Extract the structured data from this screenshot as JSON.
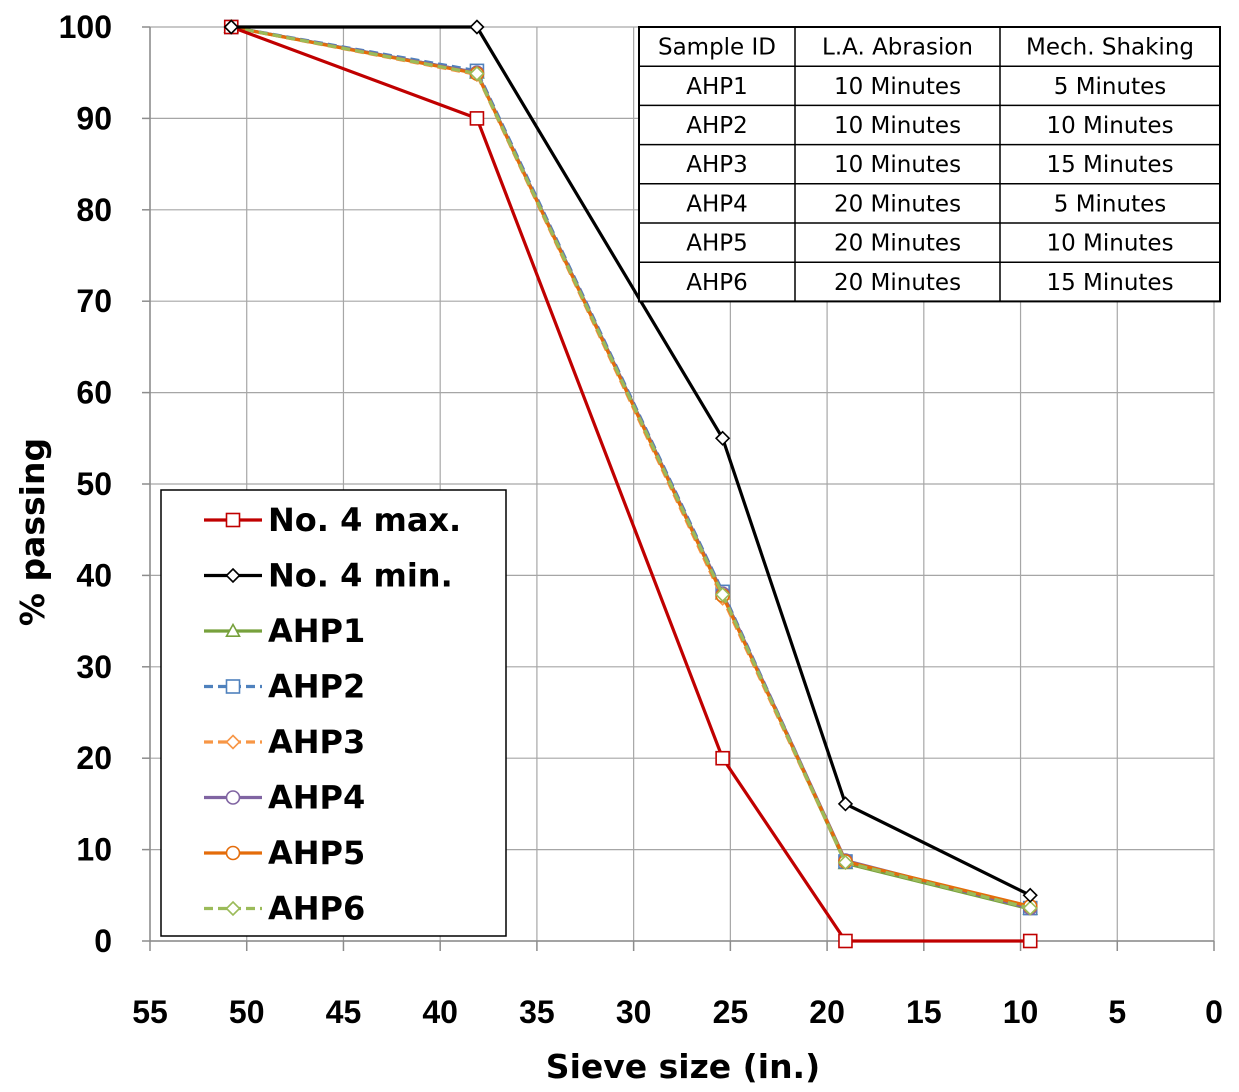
{
  "chart_data": {
    "type": "line",
    "title": "",
    "xlabel": "Sieve size (in.)",
    "ylabel": "% passing",
    "xlim": [
      55,
      0
    ],
    "ylim": [
      0,
      100
    ],
    "x_ticks": [
      "55",
      "50",
      "45",
      "40",
      "35",
      "30",
      "25",
      "20",
      "15",
      "10",
      "5",
      "0"
    ],
    "y_ticks": [
      "0",
      "10",
      "20",
      "30",
      "40",
      "50",
      "60",
      "70",
      "80",
      "90",
      "100"
    ],
    "grid": true,
    "legend_position": "bottom-left",
    "x": [
      50.8,
      38.1,
      25.4,
      19.05,
      9.5
    ],
    "series": [
      {
        "name": "No. 4 max.",
        "color": "#c00000",
        "marker": "square",
        "dashed": false,
        "values": [
          100,
          90,
          20,
          0,
          0
        ]
      },
      {
        "name": "No. 4 min.",
        "color": "#000000",
        "marker": "diamond",
        "dashed": false,
        "values": [
          100,
          100,
          55,
          15,
          5
        ]
      },
      {
        "name": "AHP1",
        "color": "#77a13c",
        "marker": "triangle",
        "dashed": false,
        "values": [
          100,
          95,
          38,
          8.5,
          3.5
        ]
      },
      {
        "name": "AHP2",
        "color": "#4f81bd",
        "marker": "square",
        "dashed": true,
        "values": [
          100,
          95.2,
          38.2,
          8.7,
          3.6
        ]
      },
      {
        "name": "AHP3",
        "color": "#f79646",
        "marker": "diamond",
        "dashed": true,
        "values": [
          100,
          94.8,
          37.5,
          8.6,
          3.7
        ]
      },
      {
        "name": "AHP4",
        "color": "#8064a2",
        "marker": "circle",
        "dashed": false,
        "values": [
          100,
          95,
          38,
          8.8,
          3.6
        ]
      },
      {
        "name": "AHP5",
        "color": "#e46c0a",
        "marker": "circle",
        "dashed": false,
        "values": [
          100,
          94.9,
          37.8,
          8.7,
          3.8
        ]
      },
      {
        "name": "AHP6",
        "color": "#9bbb59",
        "marker": "diamond",
        "dashed": true,
        "values": [
          100,
          94.9,
          37.9,
          8.6,
          3.6
        ]
      }
    ],
    "table": {
      "headers": [
        "Sample ID",
        "L.A. Abrasion",
        "Mech. Shaking"
      ],
      "rows": [
        [
          "AHP1",
          "10 Minutes",
          "5 Minutes"
        ],
        [
          "AHP2",
          "10 Minutes",
          "10 Minutes"
        ],
        [
          "AHP3",
          "10 Minutes",
          "15 Minutes"
        ],
        [
          "AHP4",
          "20 Minutes",
          "5 Minutes"
        ],
        [
          "AHP5",
          "20 Minutes",
          "10 Minutes"
        ],
        [
          "AHP6",
          "20 Minutes",
          "15 Minutes"
        ]
      ]
    }
  }
}
